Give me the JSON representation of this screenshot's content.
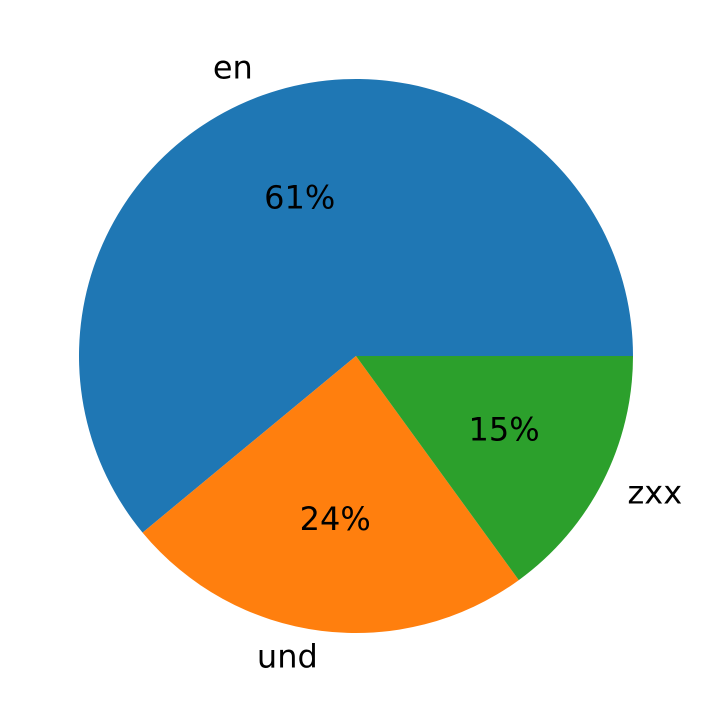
{
  "chart_data": {
    "type": "pie",
    "labels": [
      "en",
      "und",
      "zxx"
    ],
    "values": [
      61,
      24,
      15
    ],
    "value_labels": [
      "61%",
      "24%",
      "15%"
    ],
    "colors": [
      "#1f77b4",
      "#ff7f0e",
      "#2ca02c"
    ],
    "start_angle_deg": 0,
    "direction": "counterclockwise",
    "legend": "none"
  }
}
